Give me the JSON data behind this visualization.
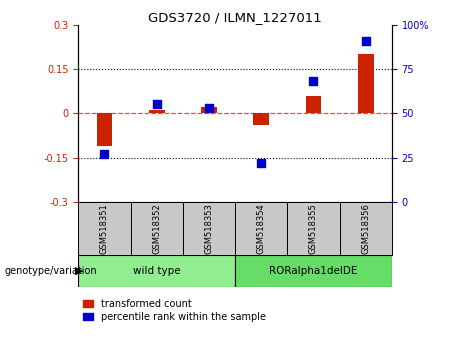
{
  "title": "GDS3720 / ILMN_1227011",
  "samples": [
    "GSM518351",
    "GSM518352",
    "GSM518353",
    "GSM518354",
    "GSM518355",
    "GSM518356"
  ],
  "group_ranges": [
    [
      0,
      2,
      "wild type",
      "#90EE90"
    ],
    [
      3,
      5,
      "RORalpha1delDE",
      "#66DD66"
    ]
  ],
  "transformed_count": [
    -0.11,
    0.01,
    0.02,
    -0.04,
    0.06,
    0.2
  ],
  "percentile_rank": [
    27,
    55,
    53,
    22,
    68,
    91
  ],
  "bar_color": "#CC2200",
  "dot_color": "#0000CC",
  "ylim_left": [
    -0.3,
    0.3
  ],
  "ylim_right": [
    0,
    100
  ],
  "yticks_left": [
    -0.3,
    -0.15,
    0.0,
    0.15,
    0.3
  ],
  "yticks_right": [
    0,
    25,
    50,
    75,
    100
  ],
  "hlines": [
    0.15,
    -0.15
  ],
  "zero_line_color": "#FF4444",
  "dot_size": 28,
  "bar_width": 0.3,
  "legend_labels": [
    "transformed count",
    "percentile rank within the sample"
  ],
  "genotype_label": "genotype/variation",
  "gray_box": "#C8C8C8",
  "background_color": "#ffffff"
}
